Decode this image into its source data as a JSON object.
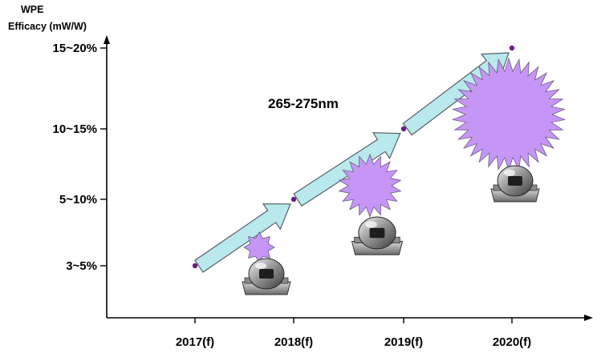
{
  "chart_data": {
    "type": "line",
    "title": "",
    "ylabel_line1": "WPE",
    "ylabel_line2": "Efficacy (mW/W)",
    "xlabel": "",
    "categories": [
      "2017(f)",
      "2018(f)",
      "2019(f)",
      "2020(f)"
    ],
    "y_tiers": [
      "3~5%",
      "5~10%",
      "10~15%",
      "15~20%"
    ],
    "series": [
      {
        "values_tier": [
          0,
          1,
          2,
          3
        ]
      }
    ],
    "annotation": "265-275nm",
    "grid": false,
    "legend": "none",
    "colors": {
      "arrow_fill": "#b9e9ec",
      "arrow_stroke": "#55606a",
      "marker": "#6a1f8a",
      "burst": "#c596f5",
      "axis": "#000000"
    },
    "icons": [
      "uv-led-package-icon",
      "light-burst-icon"
    ]
  }
}
